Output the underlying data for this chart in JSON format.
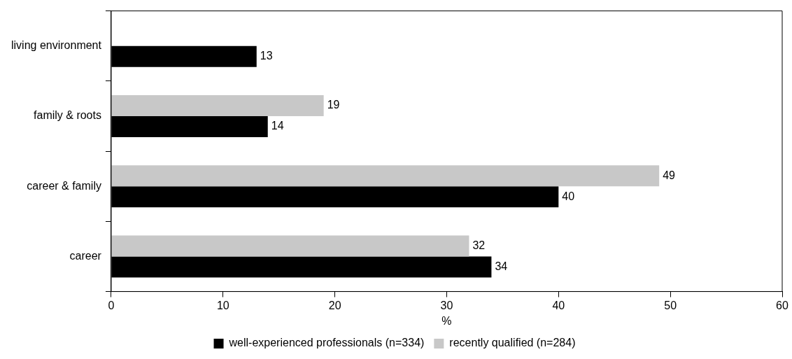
{
  "chart_data": {
    "type": "bar",
    "orientation": "horizontal",
    "xlabel": "%",
    "categories": [
      "living environment",
      "family & roots",
      "career & family",
      "career"
    ],
    "series": [
      {
        "name": "well-experienced professionals (n=334)",
        "color": "#000000",
        "values": [
          13,
          14,
          40,
          34
        ]
      },
      {
        "name": "recently qualified (n=284)",
        "color": "#c8c8c8",
        "values": [
          null,
          19,
          49,
          32
        ]
      }
    ],
    "xlim": [
      0,
      60
    ],
    "xticks": [
      0,
      10,
      20,
      30,
      40,
      50,
      60
    ],
    "data_labels": true,
    "grid": false,
    "legend": "bottom"
  }
}
